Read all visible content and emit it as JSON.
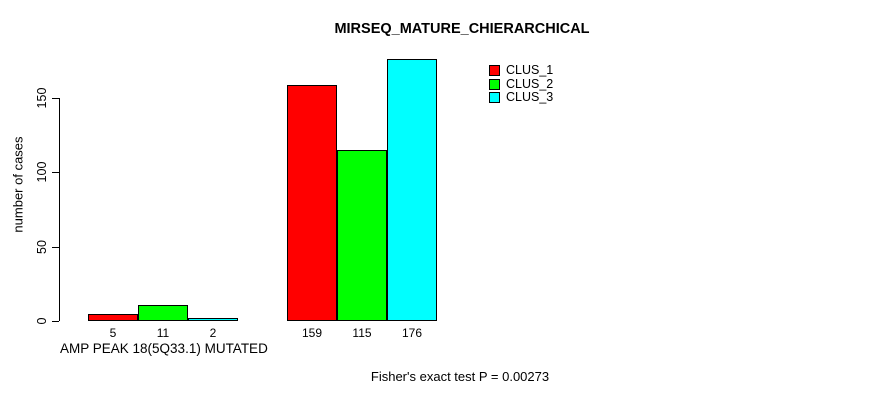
{
  "title": "MIRSEQ_MATURE_CHIERARCHICAL",
  "footer": "Fisher's exact test P = 0.00273",
  "chart_data": {
    "type": "bar",
    "title": "MIRSEQ_MATURE_CHIERARCHICAL",
    "xlabel": "",
    "ylabel": "number of cases",
    "ylim": [
      0,
      176
    ],
    "yticks": [
      0,
      50,
      100,
      150
    ],
    "grid": false,
    "legend_position": "top-right-inside",
    "categories": [
      "AMP PEAK 18(5Q33.1) MUTATED",
      ""
    ],
    "series": [
      {
        "name": "CLUS_1",
        "color": "#ff0000",
        "values": [
          5,
          159
        ]
      },
      {
        "name": "CLUS_2",
        "color": "#00ff00",
        "values": [
          11,
          115
        ]
      },
      {
        "name": "CLUS_3",
        "color": "#00ffff",
        "values": [
          2,
          176
        ]
      }
    ],
    "bar_value_labels": [
      [
        5,
        11,
        2
      ],
      [
        159,
        115,
        176
      ]
    ],
    "annotation": "Fisher's exact test P = 0.00273"
  }
}
